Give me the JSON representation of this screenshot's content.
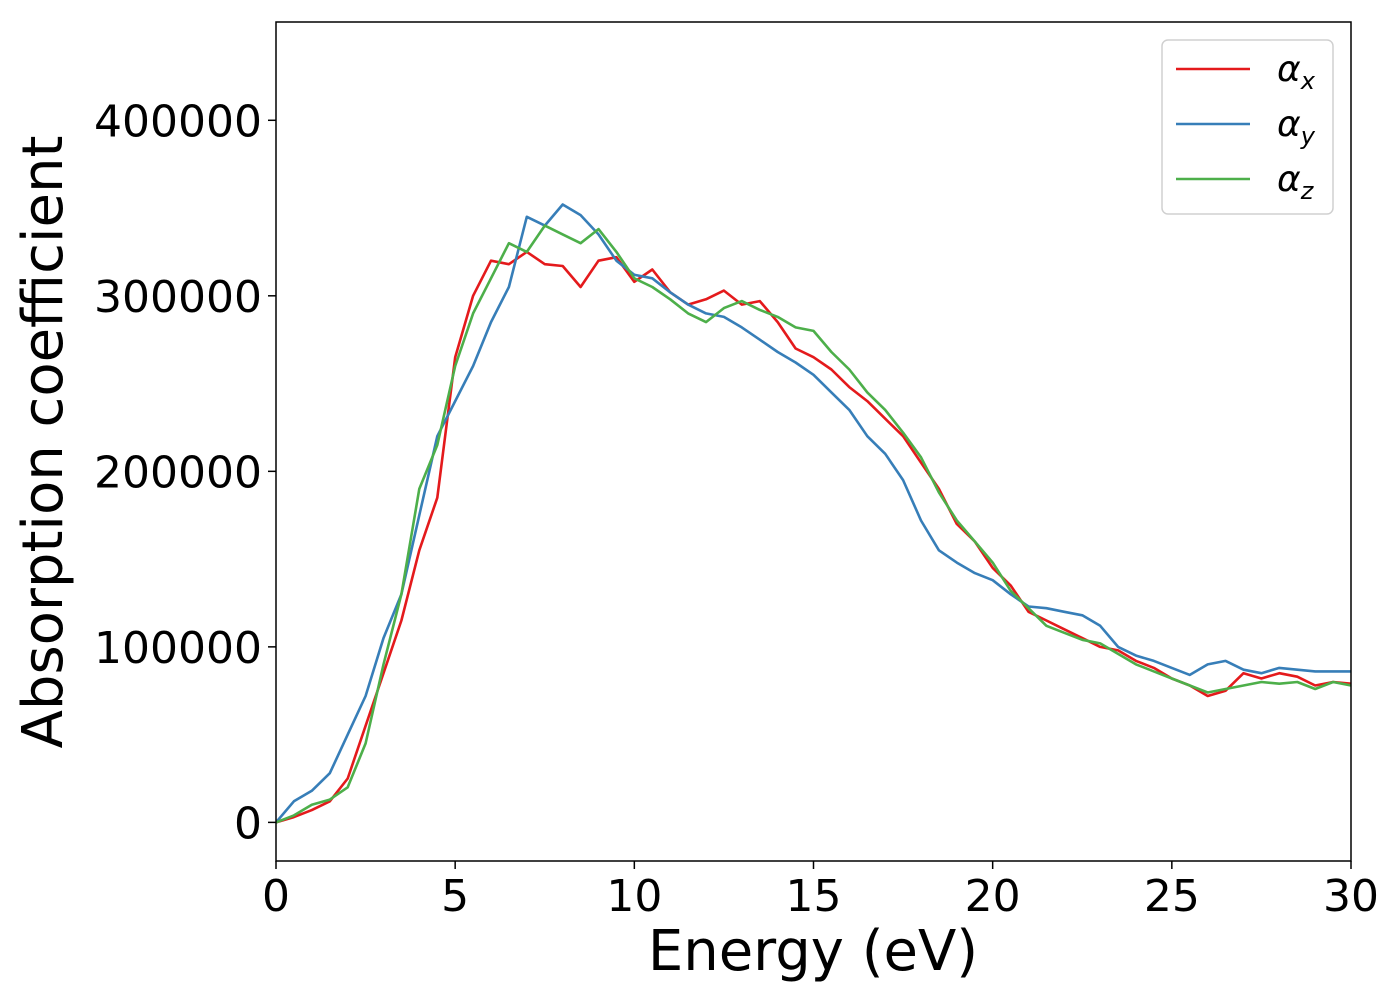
{
  "chart_data": {
    "type": "line",
    "xlabel": "Energy (eV)",
    "ylabel": "Absorption coefficient",
    "xlim": [
      0,
      30
    ],
    "ylim": [
      -22000,
      456000
    ],
    "xticks": [
      0,
      5,
      10,
      15,
      20,
      25,
      30
    ],
    "yticks": [
      0,
      100000,
      200000,
      300000,
      400000
    ],
    "grid": false,
    "legend_position": "top-right",
    "series": [
      {
        "name": "αx",
        "symbol": "α",
        "subscript": "x",
        "color": "#e41a1c",
        "x": [
          0,
          0.5,
          1,
          1.5,
          2,
          2.5,
          3,
          3.5,
          4,
          4.5,
          5,
          5.5,
          6,
          6.5,
          7,
          7.5,
          8,
          8.5,
          9,
          9.5,
          10,
          10.5,
          11,
          11.5,
          12,
          12.5,
          13,
          13.5,
          14,
          14.5,
          15,
          15.5,
          16,
          16.5,
          17,
          17.5,
          18,
          18.5,
          19,
          19.5,
          20,
          20.5,
          21,
          21.5,
          22,
          22.5,
          23,
          23.5,
          24,
          24.5,
          25,
          25.5,
          26,
          26.5,
          27,
          27.5,
          28,
          28.5,
          29,
          29.5,
          30
        ],
        "y": [
          0,
          3000,
          7000,
          12000,
          25000,
          55000,
          85000,
          115000,
          155000,
          185000,
          265000,
          300000,
          320000,
          318000,
          325000,
          318000,
          317000,
          305000,
          320000,
          322000,
          308000,
          315000,
          302000,
          295000,
          298000,
          303000,
          295000,
          297000,
          285000,
          270000,
          265000,
          258000,
          248000,
          240000,
          230000,
          220000,
          205000,
          190000,
          170000,
          160000,
          145000,
          135000,
          120000,
          115000,
          110000,
          105000,
          100000,
          98000,
          92000,
          88000,
          82000,
          78000,
          72000,
          75000,
          85000,
          82000,
          85000,
          83000,
          78000,
          80000,
          79000
        ]
      },
      {
        "name": "αy",
        "symbol": "α",
        "subscript": "y",
        "color": "#377eb8",
        "x": [
          0,
          0.5,
          1,
          1.5,
          2,
          2.5,
          3,
          3.5,
          4,
          4.5,
          5,
          5.5,
          6,
          6.5,
          7,
          7.5,
          8,
          8.5,
          9,
          9.5,
          10,
          10.5,
          11,
          11.5,
          12,
          12.5,
          13,
          13.5,
          14,
          14.5,
          15,
          15.5,
          16,
          16.5,
          17,
          17.5,
          18,
          18.5,
          19,
          19.5,
          20,
          20.5,
          21,
          21.5,
          22,
          22.5,
          23,
          23.5,
          24,
          24.5,
          25,
          25.5,
          26,
          26.5,
          27,
          27.5,
          28,
          28.5,
          29,
          29.5,
          30
        ],
        "y": [
          0,
          12000,
          18000,
          28000,
          50000,
          72000,
          105000,
          130000,
          175000,
          220000,
          240000,
          260000,
          285000,
          305000,
          345000,
          340000,
          352000,
          346000,
          335000,
          320000,
          312000,
          310000,
          302000,
          295000,
          290000,
          288000,
          282000,
          275000,
          268000,
          262000,
          255000,
          245000,
          235000,
          220000,
          210000,
          195000,
          172000,
          155000,
          148000,
          142000,
          138000,
          130000,
          123000,
          122000,
          120000,
          118000,
          112000,
          100000,
          95000,
          92000,
          88000,
          84000,
          90000,
          92000,
          87000,
          85000,
          88000,
          87000,
          86000,
          86000,
          86000
        ]
      },
      {
        "name": "αz",
        "symbol": "α",
        "subscript": "z",
        "color": "#4daf4a",
        "x": [
          0,
          0.5,
          1,
          1.5,
          2,
          2.5,
          3,
          3.5,
          4,
          4.5,
          5,
          5.5,
          6,
          6.5,
          7,
          7.5,
          8,
          8.5,
          9,
          9.5,
          10,
          10.5,
          11,
          11.5,
          12,
          12.5,
          13,
          13.5,
          14,
          14.5,
          15,
          15.5,
          16,
          16.5,
          17,
          17.5,
          18,
          18.5,
          19,
          19.5,
          20,
          20.5,
          21,
          21.5,
          22,
          22.5,
          23,
          23.5,
          24,
          24.5,
          25,
          25.5,
          26,
          26.5,
          27,
          27.5,
          28,
          28.5,
          29,
          29.5,
          30
        ],
        "y": [
          0,
          4000,
          10000,
          13000,
          20000,
          45000,
          90000,
          130000,
          190000,
          215000,
          260000,
          290000,
          310000,
          330000,
          325000,
          340000,
          335000,
          330000,
          338000,
          325000,
          310000,
          305000,
          298000,
          290000,
          285000,
          293000,
          297000,
          292000,
          288000,
          282000,
          280000,
          268000,
          258000,
          245000,
          235000,
          222000,
          208000,
          188000,
          172000,
          160000,
          148000,
          132000,
          122000,
          112000,
          108000,
          104000,
          102000,
          96000,
          90000,
          86000,
          82000,
          78000,
          74000,
          76000,
          78000,
          80000,
          79000,
          80000,
          76000,
          80000,
          78000
        ]
      }
    ]
  }
}
